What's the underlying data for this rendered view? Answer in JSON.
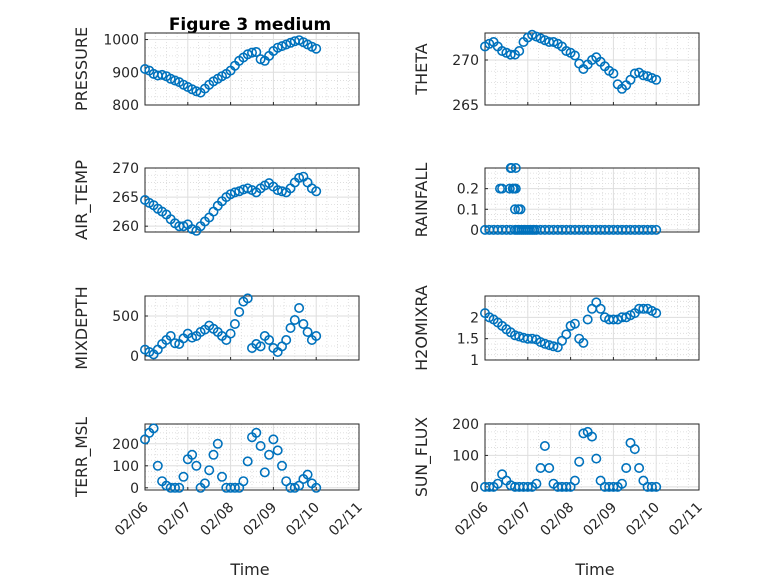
{
  "chart_data": {
    "type": "scatter",
    "title": "Figure 3 medium",
    "xlabel": "Time",
    "x_ticks": [
      "02/06",
      "02/07",
      "02/08",
      "02/09",
      "02/10",
      "02/11"
    ],
    "x_range_days": [
      0,
      5
    ],
    "marker_color": "#0072BD",
    "panels": [
      {
        "id": "pressure",
        "ylabel": "PRESSURE",
        "ylim": [
          800,
          1020
        ],
        "yticks": [
          800,
          900,
          1000
        ],
        "x": [
          0,
          0.1,
          0.2,
          0.3,
          0.4,
          0.5,
          0.6,
          0.7,
          0.8,
          0.9,
          1,
          1.1,
          1.2,
          1.3,
          1.4,
          1.5,
          1.6,
          1.7,
          1.8,
          1.9,
          2,
          2.1,
          2.2,
          2.3,
          2.4,
          2.5,
          2.6,
          2.7,
          2.8,
          2.9,
          3,
          3.1,
          3.2,
          3.3,
          3.4,
          3.5,
          3.6,
          3.7,
          3.8,
          3.9,
          4
        ],
        "values": [
          910,
          905,
          895,
          890,
          892,
          888,
          880,
          875,
          870,
          862,
          855,
          848,
          842,
          838,
          850,
          862,
          872,
          880,
          888,
          895,
          905,
          920,
          935,
          945,
          955,
          960,
          962,
          940,
          935,
          950,
          965,
          975,
          980,
          985,
          990,
          995,
          998,
          992,
          985,
          978,
          972
        ]
      },
      {
        "id": "theta",
        "ylabel": "THETA",
        "ylim": [
          265,
          273
        ],
        "yticks": [
          265,
          270
        ],
        "x": [
          0,
          0.1,
          0.2,
          0.3,
          0.4,
          0.5,
          0.6,
          0.7,
          0.8,
          0.9,
          1,
          1.1,
          1.2,
          1.3,
          1.4,
          1.5,
          1.6,
          1.7,
          1.8,
          1.9,
          2,
          2.1,
          2.2,
          2.3,
          2.4,
          2.5,
          2.6,
          2.7,
          2.8,
          2.9,
          3,
          3.1,
          3.2,
          3.3,
          3.4,
          3.5,
          3.6,
          3.7,
          3.8,
          3.9,
          4
        ],
        "values": [
          271.5,
          271.8,
          272,
          271.5,
          271,
          270.8,
          270.6,
          270.6,
          271,
          272,
          272.5,
          272.8,
          272.6,
          272.4,
          272.2,
          272,
          272,
          271.8,
          271.5,
          271,
          270.8,
          270.5,
          269.6,
          269,
          269.5,
          270,
          270.3,
          269.8,
          269.3,
          268.8,
          268.5,
          267.3,
          266.8,
          267.2,
          267.8,
          268.5,
          268.6,
          268.3,
          268.2,
          268,
          267.8
        ]
      },
      {
        "id": "air_temp",
        "ylabel": "AIR_TEMP",
        "ylim": [
          259,
          270
        ],
        "yticks": [
          260,
          265,
          270
        ],
        "x": [
          0,
          0.1,
          0.2,
          0.3,
          0.4,
          0.5,
          0.6,
          0.7,
          0.8,
          0.9,
          1,
          1.1,
          1.2,
          1.3,
          1.4,
          1.5,
          1.6,
          1.7,
          1.8,
          1.9,
          2,
          2.1,
          2.2,
          2.3,
          2.4,
          2.5,
          2.6,
          2.7,
          2.8,
          2.9,
          3,
          3.1,
          3.2,
          3.3,
          3.4,
          3.5,
          3.6,
          3.7,
          3.8,
          3.9,
          4
        ],
        "values": [
          264.5,
          264,
          263.6,
          263,
          262.5,
          262,
          261.2,
          260.5,
          260,
          260,
          260.3,
          259.5,
          259.2,
          260,
          260.8,
          261.5,
          262.5,
          263.5,
          264.3,
          265,
          265.5,
          265.8,
          266,
          266.3,
          266.5,
          266.2,
          265.8,
          266.5,
          267,
          267.4,
          266.8,
          266.2,
          266,
          265.8,
          266.5,
          267.5,
          268.3,
          268.5,
          267.5,
          266.5,
          266
        ]
      },
      {
        "id": "rainfall",
        "ylabel": "RAINFALL",
        "ylim": [
          -0.01,
          0.3
        ],
        "yticks": [
          0,
          0.1,
          0.2
        ],
        "x": [
          0,
          0.1,
          0.2,
          0.3,
          0.4,
          0.5,
          0.6,
          0.7,
          0.75,
          0.8,
          0.85,
          0.9,
          0.95,
          1,
          1.05,
          1.1,
          1.15,
          1.2,
          1.3,
          1.4,
          1.5,
          1.6,
          1.7,
          1.8,
          1.9,
          2,
          2.1,
          2.2,
          2.3,
          2.4,
          2.5,
          2.6,
          2.7,
          2.8,
          2.9,
          3,
          3.1,
          3.2,
          3.3,
          3.4,
          3.5,
          3.6,
          3.7,
          3.8,
          3.9,
          4,
          0.35,
          0.4,
          0.58,
          0.6,
          0.62,
          0.65,
          0.68,
          0.72,
          0.72,
          0.7,
          0.78,
          0.83
        ],
        "values": [
          0,
          0,
          0,
          0,
          0,
          0,
          0,
          0,
          0,
          0,
          0,
          0,
          0,
          0,
          0,
          0,
          0,
          0,
          0,
          0,
          0,
          0,
          0,
          0,
          0,
          0,
          0,
          0,
          0,
          0,
          0,
          0,
          0,
          0,
          0,
          0,
          0,
          0,
          0,
          0,
          0,
          0,
          0,
          0,
          0,
          0,
          0.2,
          0.2,
          0.2,
          0.3,
          0.3,
          0.2,
          0.2,
          0.3,
          0.2,
          0.1,
          0.1,
          0.1
        ]
      },
      {
        "id": "mixdepth",
        "ylabel": "MIXDEPTH",
        "ylim": [
          -50,
          750
        ],
        "yticks": [
          0,
          500
        ],
        "x": [
          0,
          0.1,
          0.2,
          0.3,
          0.4,
          0.5,
          0.6,
          0.7,
          0.8,
          0.9,
          1,
          1.1,
          1.2,
          1.3,
          1.4,
          1.5,
          1.6,
          1.7,
          1.8,
          1.9,
          2,
          2.1,
          2.2,
          2.3,
          2.4,
          2.5,
          2.6,
          2.7,
          2.8,
          2.9,
          3,
          3.1,
          3.2,
          3.3,
          3.4,
          3.5,
          3.6,
          3.7,
          3.8,
          3.9,
          4
        ],
        "values": [
          80,
          50,
          20,
          80,
          150,
          200,
          250,
          160,
          150,
          220,
          280,
          230,
          250,
          300,
          330,
          380,
          340,
          300,
          250,
          200,
          280,
          400,
          550,
          680,
          720,
          100,
          150,
          120,
          250,
          200,
          100,
          50,
          120,
          200,
          350,
          450,
          600,
          400,
          300,
          200,
          250
        ]
      },
      {
        "id": "h2omixra",
        "ylabel": "H2OMIXRA",
        "ylim": [
          1,
          2.5
        ],
        "yticks": [
          1,
          1.5,
          2
        ],
        "x": [
          0,
          0.1,
          0.2,
          0.3,
          0.4,
          0.5,
          0.6,
          0.7,
          0.8,
          0.9,
          1,
          1.1,
          1.2,
          1.3,
          1.4,
          1.5,
          1.6,
          1.7,
          1.8,
          1.9,
          2,
          2.1,
          2.2,
          2.3,
          2.4,
          2.5,
          2.6,
          2.7,
          2.8,
          2.9,
          3,
          3.1,
          3.2,
          3.3,
          3.4,
          3.5,
          3.6,
          3.7,
          3.8,
          3.9,
          4
        ],
        "values": [
          2.1,
          2,
          1.95,
          1.88,
          1.8,
          1.72,
          1.65,
          1.58,
          1.55,
          1.52,
          1.5,
          1.5,
          1.48,
          1.42,
          1.38,
          1.35,
          1.32,
          1.3,
          1.45,
          1.6,
          1.8,
          1.85,
          1.5,
          1.4,
          1.95,
          2.2,
          2.35,
          2.2,
          2,
          1.95,
          1.95,
          1.95,
          2,
          2,
          2.05,
          2.1,
          2.2,
          2.2,
          2.2,
          2.15,
          2.1
        ]
      },
      {
        "id": "terr_msl",
        "ylabel": "TERR_MSL",
        "ylim": [
          -10,
          290
        ],
        "yticks": [
          0,
          100,
          200
        ],
        "x": [
          0,
          0.1,
          0.2,
          0.3,
          0.4,
          0.5,
          0.6,
          0.7,
          0.8,
          0.9,
          1,
          1.1,
          1.2,
          1.3,
          1.4,
          1.5,
          1.6,
          1.7,
          1.8,
          1.9,
          2,
          2.1,
          2.2,
          2.3,
          2.4,
          2.5,
          2.6,
          2.7,
          2.8,
          2.9,
          3,
          3.1,
          3.2,
          3.3,
          3.4,
          3.5,
          3.6,
          3.7,
          3.8,
          3.9,
          4
        ],
        "values": [
          220,
          250,
          270,
          100,
          30,
          10,
          0,
          0,
          0,
          50,
          130,
          150,
          100,
          0,
          20,
          80,
          150,
          200,
          50,
          0,
          0,
          0,
          0,
          30,
          120,
          230,
          250,
          190,
          70,
          150,
          220,
          170,
          100,
          30,
          0,
          0,
          10,
          40,
          60,
          20,
          0
        ]
      },
      {
        "id": "sun_flux",
        "ylabel": "SUN_FLUX",
        "ylim": [
          -10,
          200
        ],
        "yticks": [
          0,
          100,
          200
        ],
        "x": [
          0,
          0.1,
          0.2,
          0.3,
          0.4,
          0.5,
          0.6,
          0.7,
          0.8,
          0.9,
          1,
          1.1,
          1.2,
          1.3,
          1.4,
          1.5,
          1.6,
          1.7,
          1.8,
          1.9,
          2,
          2.1,
          2.2,
          2.3,
          2.4,
          2.5,
          2.6,
          2.7,
          2.8,
          2.9,
          3,
          3.1,
          3.2,
          3.3,
          3.4,
          3.5,
          3.6,
          3.7,
          3.8,
          3.9,
          4
        ],
        "values": [
          0,
          0,
          0,
          10,
          40,
          20,
          5,
          0,
          0,
          0,
          0,
          0,
          10,
          60,
          130,
          60,
          10,
          0,
          0,
          0,
          0,
          20,
          80,
          170,
          175,
          160,
          90,
          20,
          0,
          0,
          0,
          0,
          10,
          60,
          140,
          120,
          60,
          20,
          0,
          0,
          0
        ]
      }
    ]
  }
}
